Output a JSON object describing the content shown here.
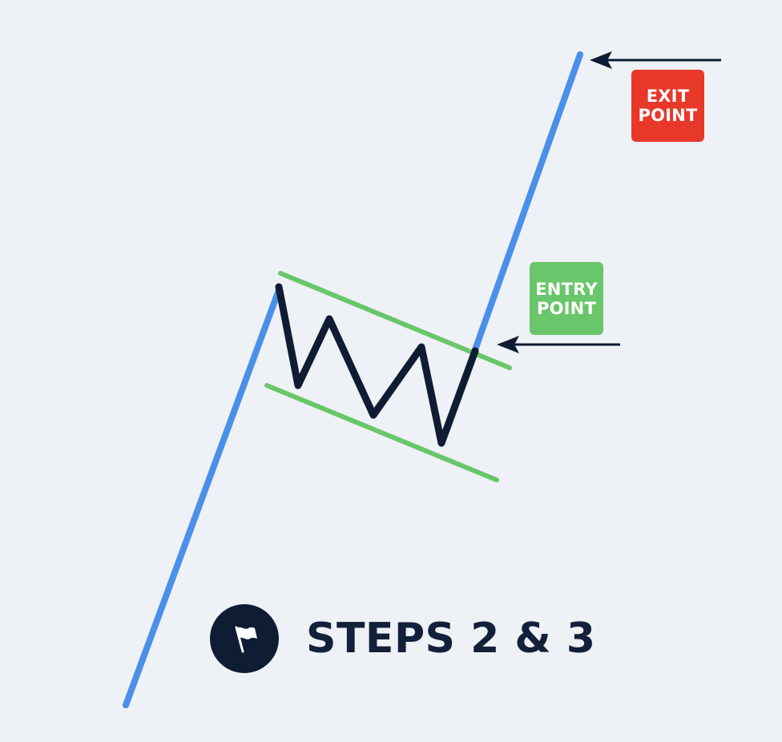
{
  "badges": {
    "exit": {
      "line1": "EXIT",
      "line2": "POINT",
      "color": "#e8382a"
    },
    "entry": {
      "line1": "ENTRY",
      "line2": "POINT",
      "color": "#69c66a"
    }
  },
  "footer": {
    "label": "STEPS 2 & 3",
    "icon": "flag-icon"
  },
  "colors": {
    "background": "#eef1f5",
    "trend_line": "#4a90e8",
    "channel_lines": "#69c66a",
    "zigzag": "#0f1c33",
    "arrows": "#0f1c33"
  }
}
